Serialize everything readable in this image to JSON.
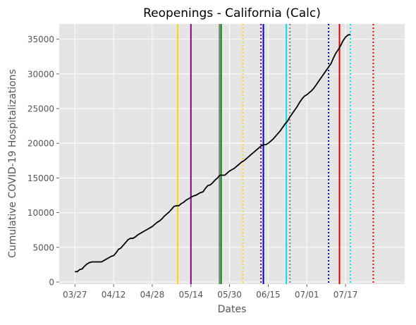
{
  "chart_data": {
    "type": "line",
    "title": "Reopenings - California (Calc)",
    "xlabel": "Dates",
    "ylabel": "Cumulative COVID-19 Hospitalizations",
    "x_start": "03/27",
    "x_ticks": [
      {
        "label": "03/27",
        "day": 0
      },
      {
        "label": "04/12",
        "day": 16
      },
      {
        "label": "04/28",
        "day": 32
      },
      {
        "label": "05/14",
        "day": 48
      },
      {
        "label": "05/30",
        "day": 64
      },
      {
        "label": "06/15",
        "day": 80
      },
      {
        "label": "07/01",
        "day": 96
      },
      {
        "label": "07/17",
        "day": 112
      }
    ],
    "xlim_days": [
      -6.5,
      136.5
    ],
    "ylim": [
      -300,
      37200
    ],
    "y_ticks": [
      0,
      5000,
      10000,
      15000,
      20000,
      25000,
      30000,
      35000
    ],
    "grid": true,
    "series": [
      {
        "color": "#000000",
        "points": [
          [
            0,
            1500
          ],
          [
            1,
            1500
          ],
          [
            2,
            1800
          ],
          [
            3,
            1900
          ],
          [
            4,
            2300
          ],
          [
            5,
            2600
          ],
          [
            6,
            2800
          ],
          [
            7,
            2900
          ],
          [
            8,
            2900
          ],
          [
            9,
            2900
          ],
          [
            10,
            2900
          ],
          [
            11,
            2900
          ],
          [
            12,
            3100
          ],
          [
            13,
            3300
          ],
          [
            14,
            3500
          ],
          [
            15,
            3700
          ],
          [
            16,
            3800
          ],
          [
            17,
            4200
          ],
          [
            18,
            4700
          ],
          [
            19,
            4900
          ],
          [
            20,
            5300
          ],
          [
            21,
            5700
          ],
          [
            22,
            6100
          ],
          [
            23,
            6300
          ],
          [
            24,
            6300
          ],
          [
            25,
            6500
          ],
          [
            26,
            6800
          ],
          [
            27,
            7000
          ],
          [
            28,
            7200
          ],
          [
            29,
            7400
          ],
          [
            30,
            7600
          ],
          [
            31,
            7800
          ],
          [
            32,
            8000
          ],
          [
            33,
            8300
          ],
          [
            34,
            8600
          ],
          [
            35,
            8800
          ],
          [
            36,
            9100
          ],
          [
            37,
            9500
          ],
          [
            38,
            9800
          ],
          [
            39,
            10100
          ],
          [
            40,
            10500
          ],
          [
            41,
            10900
          ],
          [
            42,
            11000
          ],
          [
            43,
            11000
          ],
          [
            44,
            11300
          ],
          [
            45,
            11500
          ],
          [
            46,
            11800
          ],
          [
            47,
            12000
          ],
          [
            48,
            12200
          ],
          [
            49,
            12400
          ],
          [
            50,
            12500
          ],
          [
            51,
            12700
          ],
          [
            52,
            12900
          ],
          [
            53,
            13000
          ],
          [
            54,
            13500
          ],
          [
            55,
            13900
          ],
          [
            56,
            14000
          ],
          [
            57,
            14300
          ],
          [
            58,
            14700
          ],
          [
            59,
            15000
          ],
          [
            60,
            15400
          ],
          [
            61,
            15400
          ],
          [
            62,
            15400
          ],
          [
            63,
            15700
          ],
          [
            64,
            16000
          ],
          [
            65,
            16200
          ],
          [
            66,
            16400
          ],
          [
            67,
            16700
          ],
          [
            68,
            17000
          ],
          [
            69,
            17300
          ],
          [
            70,
            17500
          ],
          [
            71,
            17800
          ],
          [
            72,
            18100
          ],
          [
            73,
            18400
          ],
          [
            74,
            18700
          ],
          [
            75,
            19000
          ],
          [
            76,
            19300
          ],
          [
            77,
            19600
          ],
          [
            78,
            19800
          ],
          [
            79,
            19800
          ],
          [
            80,
            20000
          ],
          [
            81,
            20300
          ],
          [
            82,
            20600
          ],
          [
            83,
            21000
          ],
          [
            84,
            21400
          ],
          [
            85,
            21800
          ],
          [
            86,
            22300
          ],
          [
            87,
            22800
          ],
          [
            88,
            23200
          ],
          [
            89,
            23800
          ],
          [
            90,
            24300
          ],
          [
            91,
            24800
          ],
          [
            92,
            25300
          ],
          [
            93,
            25900
          ],
          [
            94,
            26400
          ],
          [
            95,
            26800
          ],
          [
            96,
            27000
          ],
          [
            97,
            27300
          ],
          [
            98,
            27600
          ],
          [
            99,
            28000
          ],
          [
            100,
            28500
          ],
          [
            101,
            29000
          ],
          [
            102,
            29500
          ],
          [
            103,
            30000
          ],
          [
            104,
            30500
          ],
          [
            105,
            31000
          ],
          [
            106,
            31500
          ],
          [
            107,
            32300
          ],
          [
            108,
            33000
          ],
          [
            109,
            33500
          ],
          [
            110,
            34100
          ],
          [
            111,
            34800
          ],
          [
            112,
            35300
          ],
          [
            113,
            35600
          ],
          [
            114,
            35700
          ]
        ]
      }
    ],
    "vertical_lines": [
      {
        "day": 42.5,
        "color": "#FFD700",
        "style": "solid"
      },
      {
        "day": 48,
        "color": "#800080",
        "style": "solid"
      },
      {
        "day": 59.8,
        "color": "#808080",
        "style": "solid"
      },
      {
        "day": 60.5,
        "color": "#008000",
        "style": "solid"
      },
      {
        "day": 69.5,
        "color": "#FFD700",
        "style": "dotted"
      },
      {
        "day": 77,
        "color": "#800080",
        "style": "dotted"
      },
      {
        "day": 78,
        "color": "#0000CD",
        "style": "solid"
      },
      {
        "day": 87.5,
        "color": "#00E5E5",
        "style": "solid"
      },
      {
        "day": 89,
        "color": "#808080",
        "style": "dotted"
      },
      {
        "day": 105,
        "color": "#0000CD",
        "style": "dotted"
      },
      {
        "day": 109.5,
        "color": "#E00000",
        "style": "solid"
      },
      {
        "day": 114,
        "color": "#00E5E5",
        "style": "dotted"
      },
      {
        "day": 123.5,
        "color": "#E00000",
        "style": "dotted"
      }
    ]
  }
}
